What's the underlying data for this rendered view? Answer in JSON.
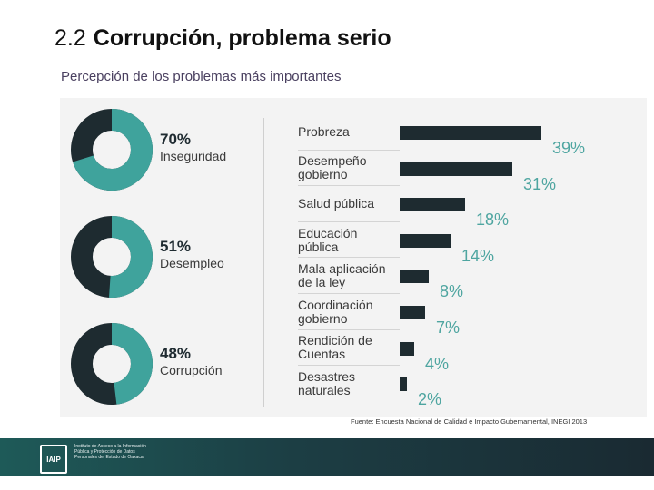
{
  "title": {
    "number": "2.2",
    "text": "Corrupción, problema serio"
  },
  "subtitle": "Percepción de los problemas más importantes",
  "chart_data": [
    {
      "type": "pie",
      "slices": [
        {
          "label": "Inseguridad",
          "value": 70,
          "value_label": "70%"
        },
        {
          "label": "Desempleo",
          "value": 51,
          "value_label": "51%"
        },
        {
          "label": "Corrupción",
          "value": 48,
          "value_label": "48%"
        }
      ],
      "colors": {
        "value": "#3fa39c",
        "rest": "#1e2b30"
      }
    },
    {
      "type": "bar",
      "categories": [
        "Probreza",
        "Desempeño\ngobierno",
        "Salud pública",
        "Educación\npública",
        "Mala aplicación\nde la ley",
        "Coordinación\ngobierno",
        "Rendición de\nCuentas",
        "Desastres\nnaturales"
      ],
      "values": [
        39,
        31,
        18,
        14,
        8,
        7,
        4,
        2
      ],
      "value_labels": [
        "39%",
        "31%",
        "18%",
        "14%",
        "8%",
        "7%",
        "4%",
        "2%"
      ],
      "xlim": [
        0,
        40
      ],
      "colors": {
        "bar": "#1e2b30",
        "label": "#4ea5a0"
      }
    }
  ],
  "source": "Fuente: Encuesta Nacional de Calidad e Impacto Gubernamental, INEGI 2013",
  "footer": {
    "logo_abbr": "IAIP",
    "logo_text": "Instituto de Acceso a la Información Pública y Protección de Datos Personales del Estado de Oaxaca"
  }
}
